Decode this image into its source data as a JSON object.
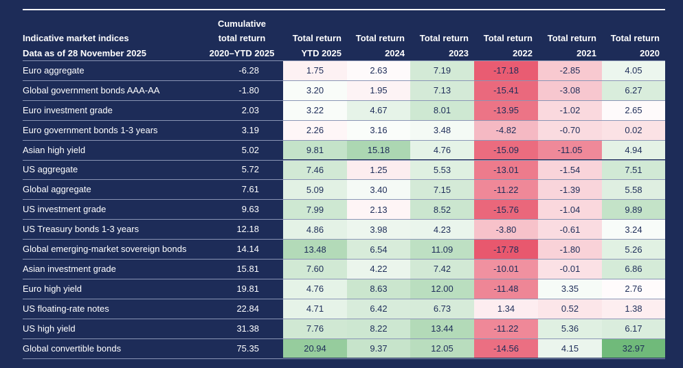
{
  "header": {
    "title_lines": [
      "Indicative market indices",
      "Data as of 28 November 2025"
    ]
  },
  "table": {
    "columns": [
      [
        "Cumulative",
        "total return",
        "2020–YTD 2025"
      ],
      [
        "Total return",
        "YTD 2025"
      ],
      [
        "Total return",
        "2024"
      ],
      [
        "Total return",
        "2023"
      ],
      [
        "Total return",
        "2022"
      ],
      [
        "Total return",
        "2021"
      ],
      [
        "Total return",
        "2020"
      ]
    ],
    "rows": [
      [
        "Euro aggregate",
        "-6.28",
        "1.75",
        "2.63",
        "7.19",
        "-17.18",
        "-2.85",
        "4.05"
      ],
      [
        "Global government bonds AAA-AA",
        "-1.80",
        "3.20",
        "1.95",
        "7.13",
        "-15.41",
        "-3.08",
        "6.27"
      ],
      [
        "Euro investment grade",
        "2.03",
        "3.22",
        "4.67",
        "8.01",
        "-13.95",
        "-1.02",
        "2.65"
      ],
      [
        "Euro government bonds 1-3 years",
        "3.19",
        "2.26",
        "3.16",
        "3.48",
        "-4.82",
        "-0.70",
        "0.02"
      ],
      [
        "Asian high yield",
        "5.02",
        "9.81",
        "15.18",
        "4.76",
        "-15.09",
        "-11.05",
        "4.94"
      ],
      [
        "US aggregate",
        "5.72",
        "7.46",
        "1.25",
        "5.53",
        "-13.01",
        "-1.54",
        "7.51"
      ],
      [
        "Global aggregate",
        "7.61",
        "5.09",
        "3.40",
        "7.15",
        "-11.22",
        "-1.39",
        "5.58"
      ],
      [
        "US investment grade",
        "9.63",
        "7.99",
        "2.13",
        "8.52",
        "-15.76",
        "-1.04",
        "9.89"
      ],
      [
        "US Treasury bonds 1-3 years",
        "12.18",
        "4.86",
        "3.98",
        "4.23",
        "-3.80",
        "-0.61",
        "3.24"
      ],
      [
        "Global emerging-market sovereign bonds",
        "14.14",
        "13.48",
        "6.54",
        "11.09",
        "-17.78",
        "-1.80",
        "5.26"
      ],
      [
        "Asian investment grade",
        "15.81",
        "7.60",
        "4.22",
        "7.42",
        "-10.01",
        "-0.01",
        "6.86"
      ],
      [
        "Euro high yield",
        "19.81",
        "4.76",
        "8.63",
        "12.00",
        "-11.48",
        "3.35",
        "2.76"
      ],
      [
        "US floating-rate notes",
        "22.84",
        "4.71",
        "6.42",
        "6.73",
        "1.34",
        "0.52",
        "1.38"
      ],
      [
        "US high yield",
        "31.38",
        "7.76",
        "8.22",
        "13.44",
        "-11.22",
        "5.36",
        "6.17"
      ],
      [
        "Global convertible bonds",
        "75.35",
        "20.94",
        "9.37",
        "12.05",
        "-14.56",
        "4.15",
        "32.97"
      ]
    ]
  }
}
